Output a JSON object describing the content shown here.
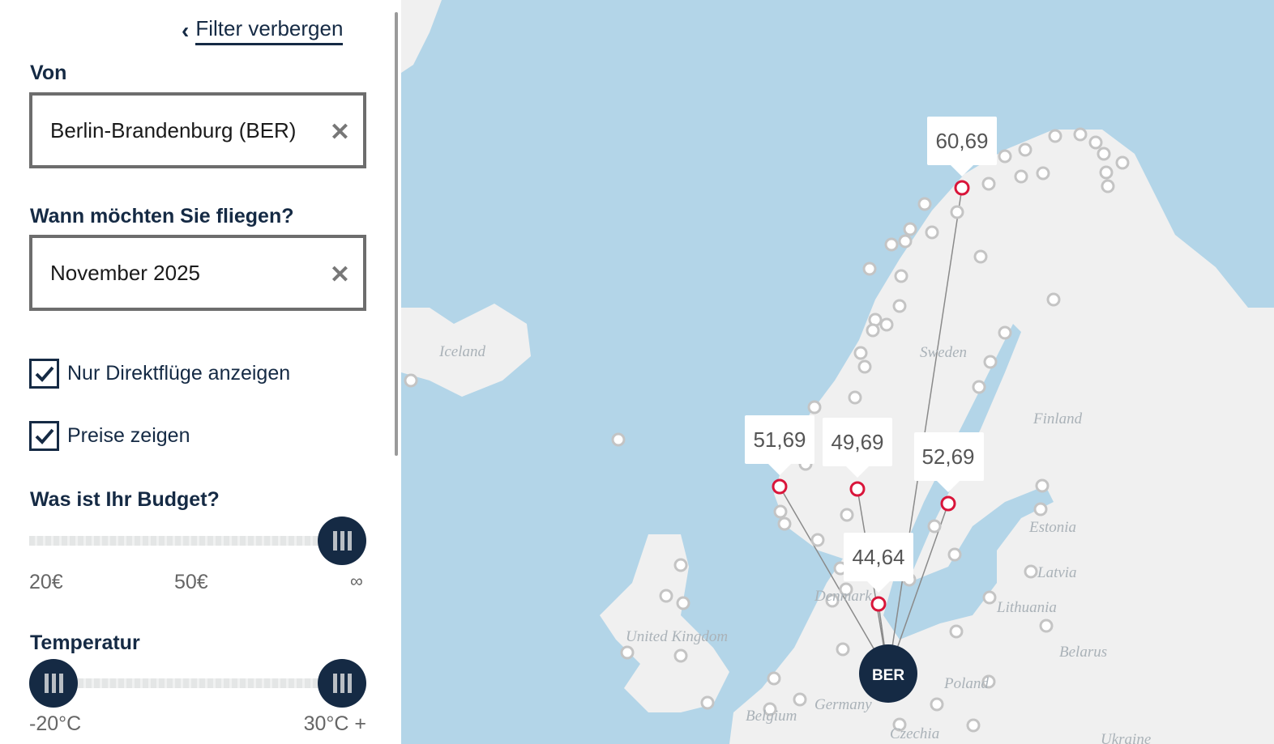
{
  "sidebar": {
    "hide_filter": "Filter verbergen",
    "from_label": "Von",
    "from_value": "Berlin-Brandenburg (BER)",
    "when_label": "Wann möchten Sie fliegen?",
    "when_value": "November 2025",
    "direct_label": "Nur Direktflüge anzeigen",
    "direct_checked": true,
    "prices_label": "Preise zeigen",
    "prices_checked": true,
    "budget_label": "Was ist Ihr Budget?",
    "budget_ticks": [
      "20€",
      "50€",
      "∞"
    ],
    "budget_value": "∞",
    "temp_label": "Temperatur",
    "temp_min": "-20°C",
    "temp_max": "30°C +"
  },
  "map": {
    "origin": "BER",
    "prices": [
      "60,69",
      "51,69",
      "49,69",
      "52,69",
      "44,64"
    ],
    "countries": [
      "Iceland",
      "Sweden",
      "Finland",
      "Estonia",
      "Latvia",
      "Lithuania",
      "Belarus",
      "Poland",
      "Germany",
      "Belgium",
      "Czechia",
      "Ukraine",
      "United Kingdom",
      "Denmark"
    ],
    "colors": {
      "water": "#b3d5e8",
      "land": "#f0f0f0",
      "origin": "#152a44",
      "destination": "#d9153a"
    }
  }
}
